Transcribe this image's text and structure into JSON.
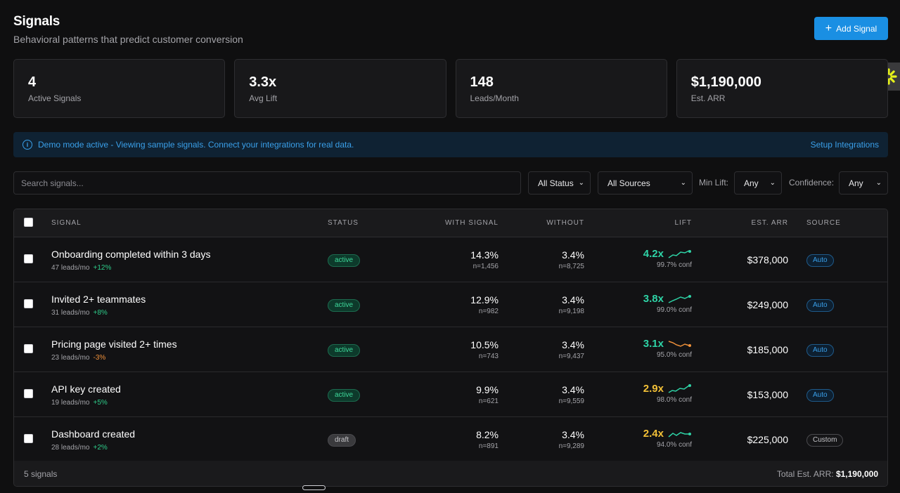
{
  "header": {
    "title": "Signals",
    "subtitle": "Behavioral patterns that predict customer conversion",
    "add_button_label": "Add Signal",
    "add_button_icon": "plus-icon"
  },
  "stats": [
    {
      "value": "4",
      "label": "Active Signals"
    },
    {
      "value": "3.3x",
      "label": "Avg Lift"
    },
    {
      "value": "148",
      "label": "Leads/Month"
    },
    {
      "value": "$1,190,000",
      "label": "Est. ARR"
    }
  ],
  "banner": {
    "icon": "info-icon",
    "message": "Demo mode active - Viewing sample signals. Connect your integrations for real data.",
    "link_label": "Setup Integrations"
  },
  "filters": {
    "search_placeholder": "Search signals...",
    "status_value": "All Status",
    "sources_value": "All Sources",
    "min_lift_label": "Min Lift:",
    "min_lift_value": "Any",
    "confidence_label": "Confidence:",
    "confidence_value": "Any"
  },
  "table": {
    "columns": {
      "signal": "Signal",
      "status": "Status",
      "with_signal": "With Signal",
      "without": "Without",
      "lift": "Lift",
      "est_arr": "Est. ARR",
      "source": "Source"
    },
    "rows": [
      {
        "name": "Onboarding completed within 3 days",
        "leads": "47 leads/mo",
        "trend": "+12%",
        "trend_dir": "up",
        "status": "active",
        "with_pct": "14.3%",
        "with_n": "n=1,456",
        "without_pct": "3.4%",
        "without_n": "n=8,725",
        "lift": "4.2x",
        "lift_color": "#2ed3a6",
        "conf": "99.7% conf",
        "arr": "$378,000",
        "source": "Auto"
      },
      {
        "name": "Invited 2+ teammates",
        "leads": "31 leads/mo",
        "trend": "+8%",
        "trend_dir": "up",
        "status": "active",
        "with_pct": "12.9%",
        "with_n": "n=982",
        "without_pct": "3.4%",
        "without_n": "n=9,198",
        "lift": "3.8x",
        "lift_color": "#2ed3a6",
        "conf": "99.0% conf",
        "arr": "$249,000",
        "source": "Auto"
      },
      {
        "name": "Pricing page visited 2+ times",
        "leads": "23 leads/mo",
        "trend": "-3%",
        "trend_dir": "down",
        "status": "active",
        "with_pct": "10.5%",
        "with_n": "n=743",
        "without_pct": "3.4%",
        "without_n": "n=9,437",
        "lift": "3.1x",
        "lift_color": "#2ed3a6",
        "conf": "95.0% conf",
        "arr": "$185,000",
        "source": "Auto"
      },
      {
        "name": "API key created",
        "leads": "19 leads/mo",
        "trend": "+5%",
        "trend_dir": "up",
        "status": "active",
        "with_pct": "9.9%",
        "with_n": "n=621",
        "without_pct": "3.4%",
        "without_n": "n=9,559",
        "lift": "2.9x",
        "lift_color": "#f2c037",
        "conf": "98.0% conf",
        "arr": "$153,000",
        "source": "Auto"
      },
      {
        "name": "Dashboard created",
        "leads": "28 leads/mo",
        "trend": "+2%",
        "trend_dir": "up",
        "status": "draft",
        "with_pct": "8.2%",
        "with_n": "n=891",
        "without_pct": "3.4%",
        "without_n": "n=9,289",
        "lift": "2.4x",
        "lift_color": "#f2c037",
        "conf": "94.0% conf",
        "arr": "$225,000",
        "source": "Custom"
      }
    ],
    "footer_count": "5 signals",
    "footer_total_label": "Total Est. ARR:",
    "footer_total_value": "$1,190,000"
  },
  "colors": {
    "accent": "#1a8fe3",
    "positive": "#2ecc8a",
    "negative": "#f0913a",
    "lift_high": "#2ed3a6",
    "lift_mid": "#f2c037"
  }
}
